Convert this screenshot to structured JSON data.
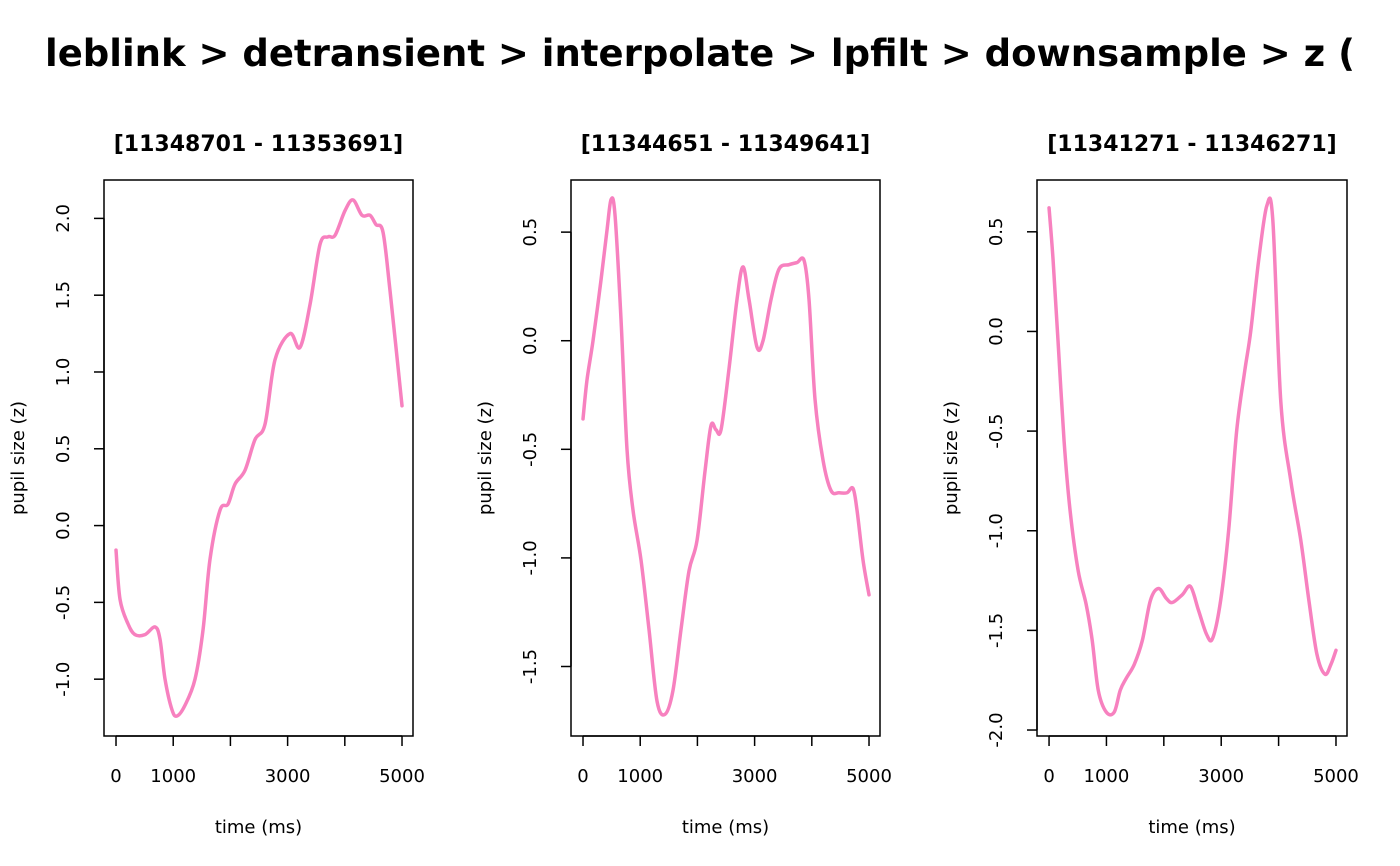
{
  "title": "leblink > detransient > interpolate > lpfilt > downsample > z (",
  "line_color": "#F781BF",
  "chart_data": [
    {
      "type": "line",
      "title": "[11348701 - 11353691]",
      "xlabel": "time (ms)",
      "ylabel": "pupil size (z)",
      "xlim": [
        -210,
        5192
      ],
      "ylim": [
        -1.37,
        2.25
      ],
      "xticks": [
        0,
        1000,
        2000,
        3000,
        4000,
        5000
      ],
      "xtick_labels": [
        "0",
        "1000",
        "",
        "3000",
        "",
        "5000"
      ],
      "yticks": [
        -1.0,
        -0.5,
        0.0,
        0.5,
        1.0,
        1.5,
        2.0
      ],
      "ytick_labels": [
        "-1.0",
        "-0.5",
        "0.0",
        "0.5",
        "1.0",
        "1.5",
        "2.0"
      ],
      "grid": false,
      "x": [
        0,
        70,
        210,
        332,
        507,
        682,
        769,
        857,
        979,
        1066,
        1206,
        1381,
        1521,
        1643,
        1818,
        1958,
        2080,
        2255,
        2430,
        2605,
        2780,
        3042,
        3217,
        3392,
        3566,
        3706,
        3829,
        4003,
        4143,
        4301,
        4441,
        4545,
        4668,
        4790,
        5000
      ],
      "y": [
        -0.16,
        -0.48,
        -0.64,
        -0.71,
        -0.71,
        -0.66,
        -0.74,
        -1.0,
        -1.2,
        -1.24,
        -1.17,
        -1.0,
        -0.68,
        -0.22,
        0.1,
        0.14,
        0.27,
        0.36,
        0.56,
        0.66,
        1.08,
        1.25,
        1.16,
        1.44,
        1.83,
        1.88,
        1.89,
        2.05,
        2.12,
        2.02,
        2.02,
        1.96,
        1.91,
        1.53,
        0.78
      ]
    },
    {
      "type": "line",
      "title": "[11344651 - 11349641]",
      "xlabel": "time (ms)",
      "ylabel": "pupil size (z)",
      "xlim": [
        -210,
        5192
      ],
      "ylim": [
        -1.82,
        0.74
      ],
      "xticks": [
        0,
        1000,
        2000,
        3000,
        4000,
        5000
      ],
      "xtick_labels": [
        "0",
        "1000",
        "",
        "3000",
        "",
        "5000"
      ],
      "yticks": [
        -1.5,
        -1.0,
        -0.5,
        0.0,
        0.5
      ],
      "ytick_labels": [
        "-1.5",
        "-1.0",
        "-0.5",
        "0.0",
        "0.5"
      ],
      "grid": false,
      "x": [
        0,
        70,
        175,
        315,
        420,
        490,
        559,
        664,
        769,
        874,
        1014,
        1154,
        1294,
        1434,
        1573,
        1713,
        1853,
        1993,
        2133,
        2238,
        2325,
        2413,
        2552,
        2692,
        2797,
        2902,
        3042,
        3147,
        3287,
        3427,
        3601,
        3741,
        3864,
        3951,
        4056,
        4196,
        4336,
        4476,
        4615,
        4720,
        4790,
        4895,
        5000
      ],
      "y": [
        -0.36,
        -0.18,
        0.0,
        0.28,
        0.51,
        0.65,
        0.58,
        0.1,
        -0.5,
        -0.78,
        -1.01,
        -1.33,
        -1.66,
        -1.72,
        -1.61,
        -1.33,
        -1.06,
        -0.92,
        -0.6,
        -0.39,
        -0.41,
        -0.41,
        -0.13,
        0.19,
        0.34,
        0.19,
        -0.03,
        0.0,
        0.19,
        0.33,
        0.35,
        0.36,
        0.37,
        0.19,
        -0.27,
        -0.55,
        -0.69,
        -0.7,
        -0.7,
        -0.68,
        -0.78,
        -1.01,
        -1.17
      ]
    },
    {
      "type": "line",
      "title": "[11341271 - 11346271]",
      "xlabel": "time (ms)",
      "ylabel": "pupil size (z)",
      "xlim": [
        -210,
        5192
      ],
      "ylim": [
        -2.03,
        0.76
      ],
      "xticks": [
        0,
        1000,
        2000,
        3000,
        4000,
        5000
      ],
      "xtick_labels": [
        "0",
        "1000",
        "",
        "3000",
        "",
        "5000"
      ],
      "yticks": [
        -2.0,
        -1.5,
        -1.0,
        -0.5,
        0.0,
        0.5
      ],
      "ytick_labels": [
        "-2.0",
        "-1.5",
        "-1.0",
        "-0.5",
        "0.0",
        "0.5"
      ],
      "grid": false,
      "x": [
        0,
        70,
        157,
        262,
        367,
        507,
        647,
        752,
        857,
        997,
        1136,
        1241,
        1346,
        1486,
        1626,
        1766,
        1906,
        2045,
        2150,
        2325,
        2465,
        2605,
        2745,
        2850,
        2990,
        3129,
        3269,
        3409,
        3514,
        3654,
        3794,
        3899,
        4038,
        4213,
        4388,
        4528,
        4668,
        4808,
        4913,
        5000
      ],
      "y": [
        0.62,
        0.36,
        -0.05,
        -0.55,
        -0.9,
        -1.2,
        -1.37,
        -1.55,
        -1.8,
        -1.91,
        -1.91,
        -1.8,
        -1.74,
        -1.67,
        -1.55,
        -1.35,
        -1.29,
        -1.34,
        -1.36,
        -1.32,
        -1.28,
        -1.4,
        -1.52,
        -1.54,
        -1.35,
        -1.0,
        -0.5,
        -0.2,
        0.0,
        0.36,
        0.63,
        0.56,
        -0.35,
        -0.75,
        -1.05,
        -1.35,
        -1.62,
        -1.72,
        -1.67,
        -1.6
      ]
    }
  ]
}
